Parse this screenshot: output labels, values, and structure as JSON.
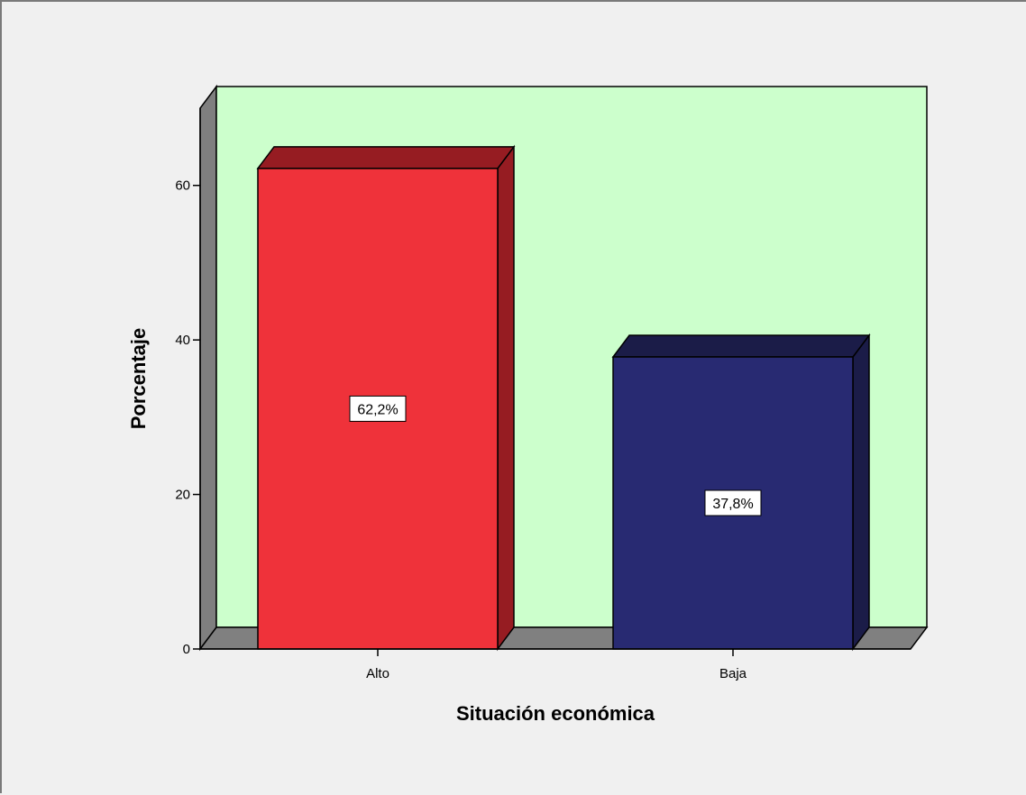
{
  "chart_data": {
    "type": "bar",
    "style": "3d",
    "categories": [
      "Alto",
      "Baja"
    ],
    "values": [
      62.2,
      37.8
    ],
    "data_labels": [
      "62,2%",
      "37,8%"
    ],
    "xlabel": "Situación económica",
    "ylabel": "Porcentaje",
    "ylim": [
      0,
      70
    ],
    "yticks": [
      0,
      20,
      40,
      60
    ],
    "grid": false,
    "legend": "none",
    "colors": {
      "plot_background": "#ccffcc",
      "page_background": "#f0f0f0",
      "wall_side": "#7f7f7f",
      "floor": "#808080",
      "bars": [
        {
          "front": "#ef323a",
          "top": "#961c22",
          "side": "#961c22"
        },
        {
          "front": "#282a72",
          "top": "#1b1c48",
          "side": "#1b1c48"
        }
      ]
    }
  }
}
